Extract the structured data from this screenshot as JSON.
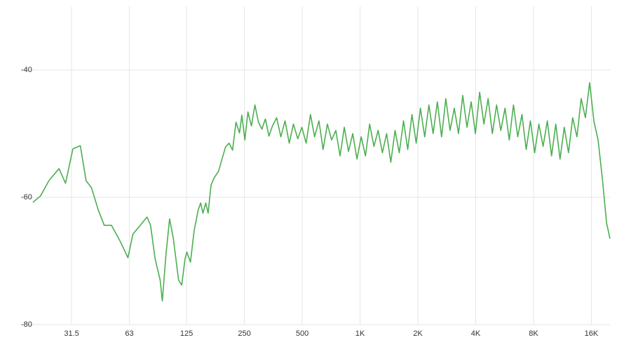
{
  "chart_data": {
    "type": "line",
    "xscale": "log",
    "grid": true,
    "xlim": [
      20,
      20000
    ],
    "ylim": [
      -80,
      -30
    ],
    "xticks": [
      31.5,
      63,
      125,
      250,
      500,
      {
        "value": 1000,
        "label": "1K"
      },
      {
        "value": 2000,
        "label": "2K"
      },
      {
        "value": 4000,
        "label": "4K"
      },
      {
        "value": 8000,
        "label": "8K"
      },
      {
        "value": 16000,
        "label": "16K"
      }
    ],
    "yticks": [
      -40,
      -60,
      -80
    ],
    "x": [
      19.8,
      21.7,
      24.0,
      27.1,
      29.3,
      32.0,
      35.0,
      37.5,
      40.0,
      43.4,
      46.6,
      50.8,
      56.4,
      61.9,
      65.7,
      71.8,
      77.8,
      81.2,
      85.8,
      91.1,
      93.5,
      97.6,
      102,
      106.6,
      113.6,
      118,
      122.7,
      125.4,
      131,
      136.8,
      143.7,
      148,
      152.1,
      157.4,
      161.9,
      167.6,
      173.6,
      183.4,
      192.5,
      199.4,
      208,
      216.9,
      226.1,
      235.8,
      242.5,
      251.4,
      260.8,
      272,
      283.6,
      295.8,
      308.4,
      321.6,
      335.4,
      349.8,
      368,
      387,
      407,
      428,
      450,
      474,
      498,
      524,
      552,
      580,
      611,
      642,
      676,
      711,
      748,
      787,
      828,
      871,
      916,
      964,
      1014,
      1067,
      1122,
      1181,
      1242,
      1307,
      1375,
      1446,
      1521,
      1600,
      1684,
      1771,
      1863,
      1960,
      2062,
      2170,
      2282,
      2401,
      2526,
      2657,
      2795,
      2941,
      3094,
      3255,
      3424,
      3602,
      3789,
      3986,
      4194,
      4412,
      4641,
      4883,
      5137,
      5404,
      5685,
      5980,
      6291,
      6619,
      6963,
      7325,
      7706,
      8107,
      8528,
      8972,
      9438,
      9929,
      10445,
      10989,
      11560,
      12161,
      12794,
      13459,
      14159,
      14895,
      15670,
      16485,
      17342,
      18244,
      19193,
      20000
    ],
    "series": [
      {
        "color": "#4caf50",
        "values": [
          -60.8,
          -59.8,
          -57.4,
          -55.5,
          -57.8,
          -52.4,
          -51.9,
          -57.4,
          -58.5,
          -62.0,
          -64.4,
          -64.4,
          -66.9,
          -69.5,
          -65.8,
          -64.4,
          -63.1,
          -64.4,
          -69.7,
          -73.0,
          -76.3,
          -69.1,
          -63.4,
          -66.4,
          -73.0,
          -73.8,
          -69.7,
          -68.6,
          -70.2,
          -65.3,
          -62.0,
          -60.9,
          -62.5,
          -60.9,
          -62.5,
          -58.1,
          -57.0,
          -55.9,
          -53.7,
          -52.1,
          -51.5,
          -52.6,
          -48.2,
          -49.9,
          -47.1,
          -51.0,
          -46.6,
          -48.8,
          -45.5,
          -48.2,
          -49.3,
          -47.7,
          -50.4,
          -48.8,
          -47.5,
          -50.5,
          -48.0,
          -51.5,
          -48.5,
          -50.8,
          -49.0,
          -51.5,
          -47.0,
          -50.5,
          -48.0,
          -52.5,
          -48.5,
          -51.0,
          -49.5,
          -53.5,
          -49.0,
          -52.8,
          -50.0,
          -54.0,
          -50.5,
          -53.5,
          -48.5,
          -52.0,
          -49.5,
          -53.0,
          -50.0,
          -54.5,
          -49.5,
          -53.0,
          -48.0,
          -52.5,
          -47.0,
          -51.5,
          -46.0,
          -50.5,
          -45.5,
          -50.0,
          -45.0,
          -50.5,
          -44.5,
          -49.5,
          -46.0,
          -50.0,
          -44.0,
          -49.0,
          -45.0,
          -50.0,
          -43.5,
          -48.5,
          -44.5,
          -50.0,
          -45.5,
          -49.5,
          -46.0,
          -51.0,
          -45.5,
          -50.5,
          -47.0,
          -52.5,
          -48.0,
          -53.0,
          -48.5,
          -52.0,
          -48.0,
          -53.5,
          -48.5,
          -54.0,
          -49.0,
          -53.0,
          -47.5,
          -50.5,
          -44.5,
          -47.5,
          -42.0,
          -48.0,
          -51.0,
          -57.0,
          -64.0,
          -66.5
        ]
      }
    ]
  }
}
